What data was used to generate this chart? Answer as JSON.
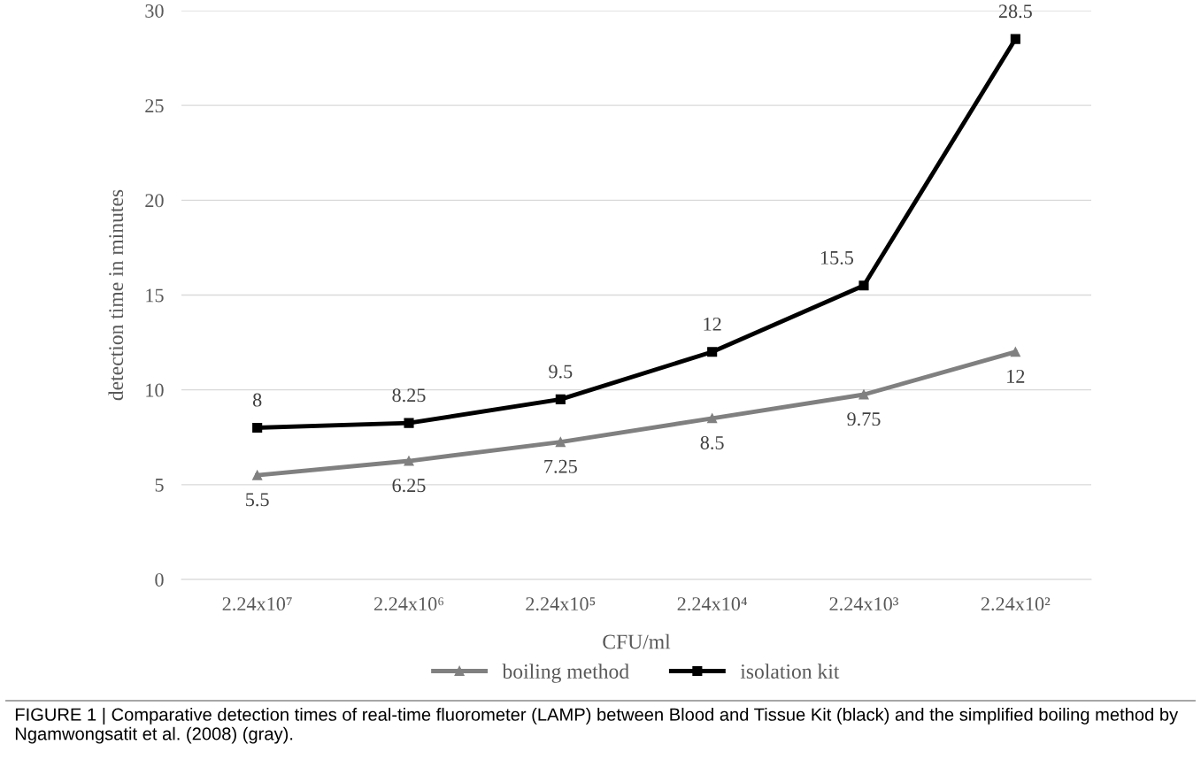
{
  "chart_data": {
    "type": "line",
    "xlabel": "CFU/ml",
    "ylabel": "detection time in minutes",
    "categories": [
      "2.24x10⁷",
      "2.24x10⁶",
      "2.24x10⁵",
      "2.24x10⁴",
      "2.24x10³",
      "2.24x10²"
    ],
    "series": [
      {
        "name": "boiling method",
        "color": "#808080",
        "marker": "triangle",
        "values": [
          5.5,
          6.25,
          7.25,
          8.5,
          9.75,
          12
        ]
      },
      {
        "name": "isolation kit",
        "color": "#000000",
        "marker": "square",
        "values": [
          8,
          8.25,
          9.5,
          12,
          15.5,
          28.5
        ]
      }
    ],
    "ylim": [
      0,
      30
    ],
    "yticks": [
      0,
      5,
      10,
      15,
      20,
      25,
      30
    ],
    "grid": "y",
    "legend": "bottom",
    "data_labels": true,
    "annotations": [
      "FIGURE 1 | Comparative detection times of real-time fluorometer (LAMP) between Blood and Tissue Kit (black) and the simplified boiling method by Ngamwongsatit et al. (2008) (gray)."
    ]
  }
}
